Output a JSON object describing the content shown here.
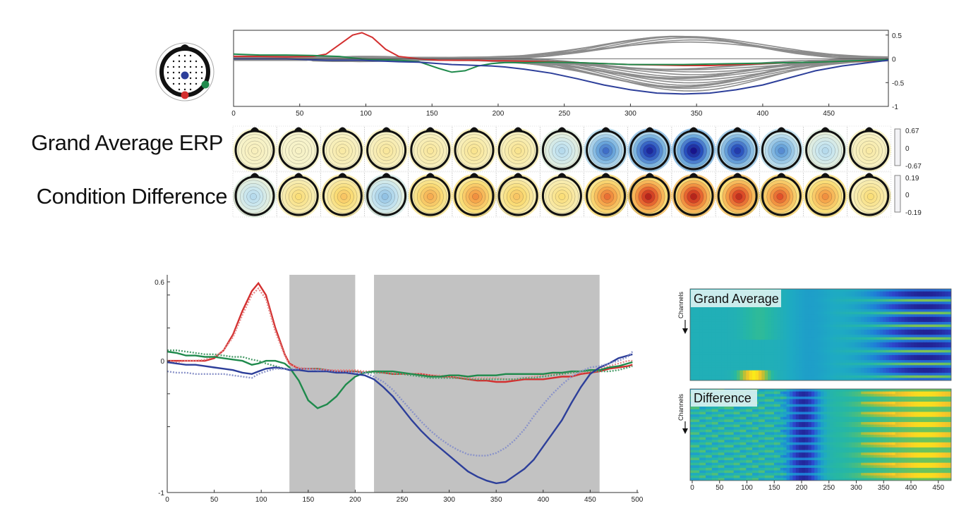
{
  "top_panel": {
    "x_ticks": [
      "0",
      "50",
      "100",
      "150",
      "200",
      "250",
      "300",
      "350",
      "400",
      "450"
    ],
    "y_ticks": [
      "0.5",
      "0",
      "-0.5",
      "-1"
    ],
    "row_labels": [
      "Grand Average ERP",
      "Condition Difference"
    ],
    "colorbar_ga": [
      "0.67",
      "0",
      "-0.67"
    ],
    "colorbar_diff": [
      "0.19",
      "0",
      "-0.19"
    ],
    "ga_topomap_levels": [
      0.05,
      0.03,
      0.1,
      0.12,
      0.12,
      0.15,
      0.15,
      -0.2,
      -0.6,
      -0.9,
      -1.0,
      -0.8,
      -0.5,
      -0.2,
      0.1
    ],
    "diff_topomap_levels": [
      -0.2,
      0.2,
      0.3,
      -0.3,
      0.4,
      0.5,
      0.3,
      0.2,
      0.6,
      0.9,
      0.9,
      0.85,
      0.7,
      0.5,
      0.2
    ]
  },
  "bottom_panel": {
    "x_ticks": [
      "0",
      "50",
      "100",
      "150",
      "200",
      "250",
      "300",
      "350",
      "400",
      "450",
      "500"
    ],
    "y_ticks": [
      "0.6",
      "0",
      "-1"
    ],
    "shaded_windows": [
      [
        130,
        200
      ],
      [
        220,
        460
      ]
    ]
  },
  "heatmaps": {
    "titles": [
      "Grand Average",
      "Difference"
    ],
    "channels_label": "Channels",
    "x_ticks": [
      "0",
      "50",
      "100",
      "150",
      "200",
      "250",
      "300",
      "350",
      "400",
      "450"
    ]
  },
  "chart_data": [
    {
      "type": "line",
      "title": "",
      "xlabel": "",
      "ylabel": "",
      "xlim": [
        0,
        495
      ],
      "ylim": [
        -1,
        0.6
      ],
      "grid": false,
      "x": [
        0,
        20,
        40,
        60,
        70,
        80,
        90,
        97,
        105,
        115,
        125,
        140,
        155,
        165,
        175,
        185,
        195,
        205,
        220,
        240,
        260,
        280,
        300,
        320,
        340,
        360,
        380,
        400,
        420,
        440,
        460,
        480,
        495
      ],
      "series": [
        {
          "color": "#d32f2f",
          "values": [
            0.05,
            0.05,
            0.04,
            0.05,
            0.1,
            0.3,
            0.5,
            0.55,
            0.45,
            0.2,
            0.05,
            0.0,
            -0.03,
            -0.03,
            -0.03,
            -0.03,
            -0.04,
            -0.04,
            -0.05,
            -0.06,
            -0.08,
            -0.1,
            -0.12,
            -0.13,
            -0.14,
            -0.14,
            -0.12,
            -0.1,
            -0.08,
            -0.07,
            -0.05,
            -0.04,
            -0.03
          ]
        },
        {
          "color": "#1f8a4c",
          "values": [
            0.1,
            0.08,
            0.08,
            0.07,
            0.06,
            0.05,
            0.02,
            0.0,
            -0.01,
            -0.02,
            -0.03,
            -0.06,
            -0.2,
            -0.28,
            -0.25,
            -0.15,
            -0.1,
            -0.08,
            -0.08,
            -0.07,
            -0.08,
            -0.1,
            -0.12,
            -0.12,
            -0.12,
            -0.11,
            -0.1,
            -0.09,
            -0.08,
            -0.07,
            -0.05,
            -0.03,
            -0.02
          ]
        },
        {
          "color": "#2d3f9a",
          "values": [
            0.0,
            0.0,
            0.0,
            -0.02,
            -0.03,
            -0.03,
            -0.03,
            -0.03,
            -0.04,
            -0.05,
            -0.06,
            -0.07,
            -0.1,
            -0.12,
            -0.13,
            -0.14,
            -0.15,
            -0.17,
            -0.22,
            -0.3,
            -0.42,
            -0.55,
            -0.65,
            -0.72,
            -0.74,
            -0.72,
            -0.65,
            -0.55,
            -0.4,
            -0.25,
            -0.15,
            -0.08,
            -0.03
          ]
        }
      ]
    },
    {
      "type": "line",
      "title": "",
      "xlabel": "",
      "ylabel": "",
      "xlim": [
        0,
        500
      ],
      "ylim": [
        -1,
        0.6
      ],
      "grid": false,
      "x": [
        0,
        10,
        20,
        30,
        40,
        50,
        60,
        70,
        80,
        90,
        97,
        105,
        115,
        125,
        130,
        140,
        150,
        160,
        170,
        180,
        190,
        200,
        210,
        220,
        230,
        240,
        250,
        260,
        270,
        280,
        290,
        300,
        310,
        320,
        330,
        340,
        350,
        360,
        370,
        380,
        390,
        400,
        410,
        420,
        430,
        440,
        450,
        460,
        470,
        480,
        490,
        495
      ],
      "series": [
        {
          "name": "",
          "color": "#d32f2f",
          "style": "solid",
          "values": [
            0.0,
            0.0,
            0.0,
            0.0,
            0.0,
            0.02,
            0.08,
            0.2,
            0.38,
            0.53,
            0.59,
            0.5,
            0.25,
            0.05,
            -0.02,
            -0.06,
            -0.06,
            -0.06,
            -0.07,
            -0.08,
            -0.08,
            -0.08,
            -0.09,
            -0.08,
            -0.09,
            -0.1,
            -0.1,
            -0.1,
            -0.1,
            -0.11,
            -0.12,
            -0.12,
            -0.13,
            -0.14,
            -0.15,
            -0.15,
            -0.16,
            -0.16,
            -0.15,
            -0.14,
            -0.14,
            -0.14,
            -0.13,
            -0.12,
            -0.12,
            -0.1,
            -0.09,
            -0.08,
            -0.06,
            -0.05,
            -0.04,
            -0.03
          ]
        },
        {
          "name": "",
          "color": "#e58b8b",
          "style": "dotted",
          "values": [
            0.0,
            -0.01,
            0.0,
            0.0,
            0.01,
            0.03,
            0.08,
            0.18,
            0.35,
            0.5,
            0.55,
            0.47,
            0.22,
            0.04,
            -0.03,
            -0.05,
            -0.06,
            -0.06,
            -0.07,
            -0.07,
            -0.07,
            -0.07,
            -0.08,
            -0.08,
            -0.08,
            -0.09,
            -0.1,
            -0.1,
            -0.1,
            -0.11,
            -0.11,
            -0.12,
            -0.12,
            -0.13,
            -0.13,
            -0.13,
            -0.13,
            -0.14,
            -0.14,
            -0.13,
            -0.12,
            -0.11,
            -0.1,
            -0.1,
            -0.09,
            -0.09,
            -0.08,
            -0.06,
            -0.04,
            -0.02,
            0.0,
            0.0
          ]
        },
        {
          "name": "",
          "color": "#1f8a4c",
          "style": "solid",
          "values": [
            0.07,
            0.06,
            0.04,
            0.04,
            0.03,
            0.03,
            0.02,
            0.01,
            0.0,
            -0.03,
            -0.02,
            0.0,
            0.0,
            -0.02,
            -0.05,
            -0.15,
            -0.3,
            -0.36,
            -0.33,
            -0.27,
            -0.18,
            -0.12,
            -0.09,
            -0.08,
            -0.08,
            -0.08,
            -0.09,
            -0.1,
            -0.11,
            -0.12,
            -0.12,
            -0.11,
            -0.11,
            -0.12,
            -0.11,
            -0.11,
            -0.11,
            -0.1,
            -0.1,
            -0.1,
            -0.1,
            -0.1,
            -0.09,
            -0.09,
            -0.08,
            -0.08,
            -0.07,
            -0.07,
            -0.05,
            -0.04,
            -0.02,
            -0.01
          ]
        },
        {
          "name": "",
          "color": "#4e9e6d",
          "style": "dotted",
          "values": [
            0.08,
            0.08,
            0.07,
            0.06,
            0.05,
            0.05,
            0.04,
            0.03,
            0.03,
            0.01,
            0.0,
            -0.02,
            -0.04,
            -0.06,
            -0.07,
            -0.06,
            -0.06,
            -0.06,
            -0.07,
            -0.08,
            -0.08,
            -0.08,
            -0.09,
            -0.09,
            -0.09,
            -0.1,
            -0.1,
            -0.11,
            -0.12,
            -0.13,
            -0.13,
            -0.13,
            -0.13,
            -0.14,
            -0.14,
            -0.14,
            -0.14,
            -0.14,
            -0.14,
            -0.13,
            -0.13,
            -0.12,
            -0.11,
            -0.1,
            -0.09,
            -0.08,
            -0.08,
            -0.08,
            -0.08,
            -0.07,
            -0.05,
            -0.04
          ]
        },
        {
          "name": "",
          "color": "#2d3f9a",
          "style": "solid",
          "values": [
            -0.01,
            -0.02,
            -0.03,
            -0.03,
            -0.04,
            -0.05,
            -0.06,
            -0.07,
            -0.09,
            -0.1,
            -0.08,
            -0.06,
            -0.05,
            -0.06,
            -0.07,
            -0.07,
            -0.08,
            -0.08,
            -0.08,
            -0.09,
            -0.09,
            -0.1,
            -0.11,
            -0.14,
            -0.2,
            -0.27,
            -0.36,
            -0.45,
            -0.53,
            -0.6,
            -0.66,
            -0.72,
            -0.78,
            -0.84,
            -0.88,
            -0.91,
            -0.93,
            -0.92,
            -0.87,
            -0.82,
            -0.75,
            -0.65,
            -0.55,
            -0.45,
            -0.32,
            -0.2,
            -0.1,
            -0.05,
            -0.02,
            0.02,
            0.04,
            0.05
          ]
        },
        {
          "name": "",
          "color": "#8a93c9",
          "style": "dotted",
          "values": [
            -0.08,
            -0.09,
            -0.09,
            -0.1,
            -0.1,
            -0.1,
            -0.1,
            -0.11,
            -0.12,
            -0.13,
            -0.1,
            -0.08,
            -0.06,
            -0.06,
            -0.06,
            -0.06,
            -0.06,
            -0.07,
            -0.07,
            -0.08,
            -0.08,
            -0.09,
            -0.09,
            -0.12,
            -0.16,
            -0.22,
            -0.3,
            -0.38,
            -0.46,
            -0.53,
            -0.59,
            -0.64,
            -0.68,
            -0.71,
            -0.72,
            -0.72,
            -0.7,
            -0.66,
            -0.6,
            -0.52,
            -0.42,
            -0.33,
            -0.25,
            -0.18,
            -0.12,
            -0.08,
            -0.05,
            -0.04,
            -0.02,
            0.0,
            0.03,
            0.07
          ]
        }
      ]
    },
    {
      "type": "heatmap",
      "title": "Grand Average",
      "xlabel": "",
      "ylabel": "Channels",
      "xlim": [
        0,
        500
      ],
      "channels": 36,
      "description_of_values": "strong negative band 280-420 on most channels; positive spot around 80-110 on bottom channels; mild negative 150-200"
    },
    {
      "type": "heatmap",
      "title": "Difference",
      "xlabel": "",
      "ylabel": "Channels",
      "xlim": [
        0,
        500
      ],
      "channels": 36,
      "description_of_values": "negative band 150-190; positive yellow/orange band 260-440 on alternating channels"
    }
  ]
}
